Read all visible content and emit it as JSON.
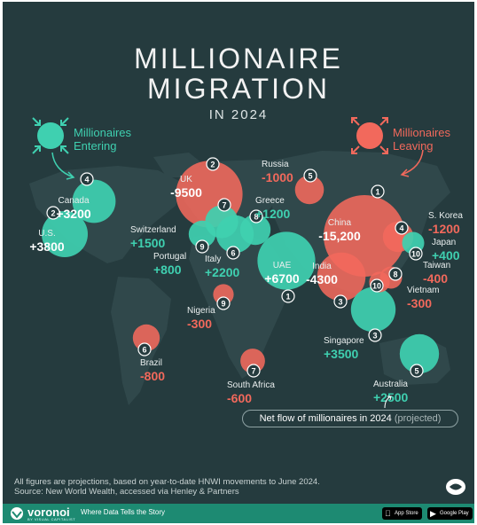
{
  "header": {
    "title_line1": "MILLIONAIRE",
    "title_line2": "MIGRATION",
    "subtitle": "IN 2024"
  },
  "legend": {
    "entering": "Millionaires Entering",
    "leaving": "Millionaires Leaving"
  },
  "chart_data": {
    "type": "bubble-map",
    "title": "MILLIONAIRE MIGRATION IN 2024",
    "metric": "Net flow of millionaires in 2024 (projected)",
    "colors": {
      "entering": "#3fd0b0",
      "leaving": "#f2695c"
    },
    "points": [
      {
        "country": "UAE",
        "value": "+6700",
        "net": 6700,
        "rank": "1"
      },
      {
        "country": "U.S.",
        "value": "+3800",
        "net": 3800,
        "rank": "2"
      },
      {
        "country": "Singapore",
        "value": "+3500",
        "net": 3500,
        "rank": "3"
      },
      {
        "country": "Canada",
        "value": "+3200",
        "net": 3200,
        "rank": "4"
      },
      {
        "country": "Australia",
        "value": "+2500",
        "net": 2500,
        "rank": "5"
      },
      {
        "country": "Italy",
        "value": "+2200",
        "net": 2200,
        "rank": "6"
      },
      {
        "country": "Switzerland",
        "value": "+1500",
        "net": 1500,
        "rank": "7"
      },
      {
        "country": "Greece",
        "value": "+1200",
        "net": 1200,
        "rank": "8"
      },
      {
        "country": "Portugal",
        "value": "+800",
        "net": 800,
        "rank": "9"
      },
      {
        "country": "Japan",
        "value": "+400",
        "net": 400,
        "rank": "10"
      },
      {
        "country": "China",
        "value": "-15,200",
        "net": -15200,
        "rank": "1"
      },
      {
        "country": "UK",
        "value": "-9500",
        "net": -9500,
        "rank": "2"
      },
      {
        "country": "India",
        "value": "-4300",
        "net": -4300,
        "rank": "3"
      },
      {
        "country": "S. Korea",
        "value": "-1200",
        "net": -1200,
        "rank": "4"
      },
      {
        "country": "Russia",
        "value": "-1000",
        "net": -1000,
        "rank": "5"
      },
      {
        "country": "Brazil",
        "value": "-800",
        "net": -800,
        "rank": "6"
      },
      {
        "country": "South Africa",
        "value": "-600",
        "net": -600,
        "rank": "7"
      },
      {
        "country": "Taiwan",
        "value": "-400",
        "net": -400,
        "rank": "8"
      },
      {
        "country": "Nigeria",
        "value": "-300",
        "net": -300,
        "rank": "9"
      },
      {
        "country": "Vietnam",
        "value": "-300",
        "net": -300,
        "rank": "10"
      }
    ]
  },
  "netflow_label": {
    "main": "Net flow of millionaires in 2024",
    "note": "(projected)"
  },
  "footnote": {
    "line1": "All figures are projections, based on year-to-date HNWI movements to June 2024.",
    "line2": "Source: New World Wealth, accessed via Henley & Partners"
  },
  "footer": {
    "brand": "voronoi",
    "brand_sub": "BY VISUAL CAPITALIST",
    "tagline": "Where Data Tells the Story",
    "app_store": "App Store",
    "google_play": "Google Play"
  }
}
